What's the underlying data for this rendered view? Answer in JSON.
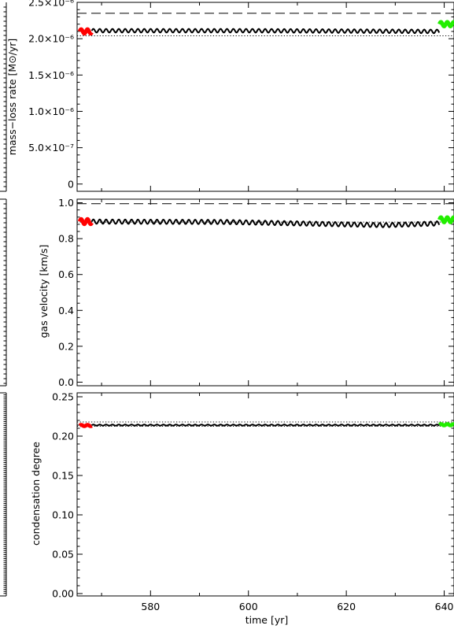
{
  "chart_data": [
    {
      "type": "line",
      "ylabel": "mass−loss rate [M⊙/yr]",
      "xlim": [
        565,
        642
      ],
      "ylim": [
        -1e-07,
        2.5e-06
      ],
      "yticks": [
        {
          "value": 0,
          "label": "0"
        },
        {
          "value": 5e-07,
          "label": "5.0×10⁻⁷"
        },
        {
          "value": 1e-06,
          "label": "1.0×10⁻⁶"
        },
        {
          "value": 1.5e-06,
          "label": "1.5×10⁻⁶"
        },
        {
          "value": 2e-06,
          "label": "2.0×10⁻⁶"
        },
        {
          "value": 2.5e-06,
          "label": "2.5×10⁻⁶"
        }
      ],
      "dashed_level": 2.35e-06,
      "dotted_level": 2.04e-06,
      "series": [
        {
          "color": "#000000",
          "x_start": 568,
          "x_end": 639,
          "mean": 2.1e-06,
          "amplitude": 2.5e-08,
          "period": 1.3,
          "trend": [
            [
              568,
              2.11e-06
            ],
            [
              600,
              2.11e-06
            ],
            [
              639,
              2.1e-06
            ]
          ]
        },
        {
          "color": "#ff0000",
          "x_start": 565.5,
          "x_end": 568,
          "mean": 2.1e-06,
          "amplitude": 3e-08,
          "period": 1.3
        },
        {
          "color": "#22ee00",
          "x_start": 639,
          "x_end": 642,
          "mean": 2.2e-06,
          "amplitude": 3e-08,
          "period": 1.3
        }
      ]
    },
    {
      "type": "line",
      "ylabel": "gas velocity [km/s]",
      "xlim": [
        565,
        642
      ],
      "ylim": [
        -0.02,
        1.02
      ],
      "yticks": [
        {
          "value": 0.0,
          "label": "0.0"
        },
        {
          "value": 0.2,
          "label": "0.2"
        },
        {
          "value": 0.4,
          "label": "0.4"
        },
        {
          "value": 0.6,
          "label": "0.6"
        },
        {
          "value": 0.8,
          "label": "0.8"
        },
        {
          "value": 1.0,
          "label": "1.0"
        }
      ],
      "dashed_level": 0.995,
      "dotted_level": 0.892,
      "series": [
        {
          "color": "#000000",
          "x_start": 568,
          "x_end": 639,
          "mean": 0.89,
          "amplitude": 0.012,
          "period": 1.3,
          "trend": [
            [
              568,
              0.895
            ],
            [
              595,
              0.893
            ],
            [
              628,
              0.875
            ],
            [
              639,
              0.885
            ]
          ]
        },
        {
          "color": "#ff0000",
          "x_start": 565.5,
          "x_end": 568,
          "mean": 0.895,
          "amplitude": 0.014,
          "period": 1.3
        },
        {
          "color": "#22ee00",
          "x_start": 639,
          "x_end": 642,
          "mean": 0.905,
          "amplitude": 0.014,
          "period": 1.3
        }
      ]
    },
    {
      "type": "line",
      "ylabel": "condensation degree",
      "xlabel": "time [yr]",
      "xlim": [
        565,
        642
      ],
      "ylim": [
        -0.003,
        0.255
      ],
      "xticks": [
        {
          "value": 580,
          "label": "580"
        },
        {
          "value": 600,
          "label": "600"
        },
        {
          "value": 620,
          "label": "620"
        },
        {
          "value": 640,
          "label": "640"
        }
      ],
      "yticks": [
        {
          "value": 0.0,
          "label": "0.00"
        },
        {
          "value": 0.05,
          "label": "0.05"
        },
        {
          "value": 0.1,
          "label": "0.10"
        },
        {
          "value": 0.15,
          "label": "0.15"
        },
        {
          "value": 0.2,
          "label": "0.20"
        },
        {
          "value": 0.25,
          "label": "0.25"
        }
      ],
      "dashed_level": 0.214,
      "dotted_levels": [
        0.218,
        0.2125
      ],
      "series": [
        {
          "color": "#000000",
          "x_start": 568,
          "x_end": 639,
          "mean": 0.214,
          "amplitude": 0.0007,
          "period": 1.3
        },
        {
          "color": "#ff0000",
          "x_start": 565.5,
          "x_end": 568,
          "mean": 0.2135,
          "amplitude": 0.0008,
          "period": 1.3
        },
        {
          "color": "#22ee00",
          "x_start": 639,
          "x_end": 642,
          "mean": 0.2145,
          "amplitude": 0.0008,
          "period": 1.3
        }
      ]
    }
  ]
}
